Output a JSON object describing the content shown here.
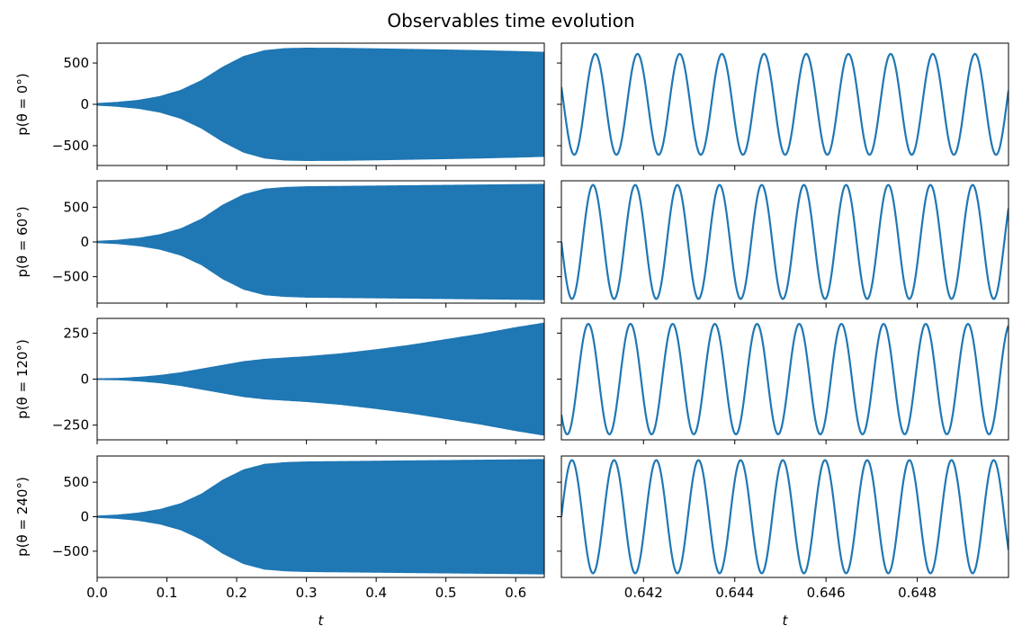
{
  "figure": {
    "title": "Observables time evolution"
  },
  "chart_data": [
    {
      "type": "area",
      "row": 0,
      "col": 0,
      "ylabel": "p(θ = 0°)",
      "xlabel": "",
      "xlim": [
        0.0,
        0.641
      ],
      "ylim": [
        -740,
        740
      ],
      "yticks": [
        -500,
        0,
        500
      ],
      "ytick_labels": [
        "−500",
        "0",
        "500"
      ],
      "xticks": [
        0.0,
        0.1,
        0.2,
        0.3,
        0.4,
        0.5,
        0.6
      ],
      "xtick_labels": [],
      "envelope": {
        "t": [
          0.0,
          0.03,
          0.06,
          0.09,
          0.12,
          0.15,
          0.18,
          0.21,
          0.24,
          0.27,
          0.3,
          0.35,
          0.4,
          0.45,
          0.5,
          0.55,
          0.6,
          0.641
        ],
        "amp": [
          10,
          25,
          50,
          95,
          170,
          290,
          450,
          580,
          650,
          675,
          680,
          678,
          672,
          665,
          658,
          650,
          640,
          630
        ]
      }
    },
    {
      "type": "line",
      "row": 0,
      "col": 1,
      "ylabel": "",
      "xlabel": "",
      "xlim": [
        0.6402,
        0.65
      ],
      "ylim": [
        -740,
        740
      ],
      "yticks": [
        -500,
        0,
        500
      ],
      "xticks": [
        0.642,
        0.644,
        0.646,
        0.648
      ],
      "xtick_labels": [],
      "wave": {
        "amplitude": 610,
        "cycles": 10.6,
        "phase_deg": 160
      }
    },
    {
      "type": "area",
      "row": 1,
      "col": 0,
      "ylabel": "p(θ = 60°)",
      "xlabel": "",
      "xlim": [
        0.0,
        0.641
      ],
      "ylim": [
        -880,
        880
      ],
      "yticks": [
        -500,
        0,
        500
      ],
      "ytick_labels": [
        "−500",
        "0",
        "500"
      ],
      "xticks": [
        0.0,
        0.1,
        0.2,
        0.3,
        0.4,
        0.5,
        0.6
      ],
      "xtick_labels": [],
      "envelope": {
        "t": [
          0.0,
          0.03,
          0.06,
          0.09,
          0.12,
          0.15,
          0.18,
          0.21,
          0.24,
          0.27,
          0.3,
          0.35,
          0.4,
          0.45,
          0.5,
          0.55,
          0.6,
          0.641
        ],
        "amp": [
          10,
          25,
          55,
          105,
          190,
          330,
          530,
          680,
          760,
          785,
          795,
          800,
          805,
          810,
          815,
          820,
          825,
          830
        ]
      }
    },
    {
      "type": "line",
      "row": 1,
      "col": 1,
      "ylabel": "",
      "xlabel": "",
      "xlim": [
        0.6402,
        0.65
      ],
      "ylim": [
        -880,
        880
      ],
      "yticks": [
        -500,
        0,
        500
      ],
      "xticks": [
        0.642,
        0.644,
        0.646,
        0.648
      ],
      "xtick_labels": [],
      "wave": {
        "amplitude": 820,
        "cycles": 10.6,
        "phase_deg": 180
      }
    },
    {
      "type": "area",
      "row": 2,
      "col": 0,
      "ylabel": "p(θ = 120°)",
      "xlabel": "",
      "xlim": [
        0.0,
        0.641
      ],
      "ylim": [
        -330,
        330
      ],
      "yticks": [
        -250,
        0,
        250
      ],
      "ytick_labels": [
        "−250",
        "0",
        "250"
      ],
      "xticks": [
        0.0,
        0.1,
        0.2,
        0.3,
        0.4,
        0.5,
        0.6
      ],
      "xtick_labels": [],
      "envelope": {
        "t": [
          0.0,
          0.03,
          0.06,
          0.09,
          0.12,
          0.15,
          0.18,
          0.21,
          0.24,
          0.27,
          0.3,
          0.35,
          0.4,
          0.45,
          0.5,
          0.55,
          0.6,
          0.641
        ],
        "amp": [
          2,
          4,
          10,
          20,
          35,
          55,
          75,
          95,
          108,
          115,
          122,
          138,
          160,
          185,
          215,
          245,
          280,
          305
        ]
      }
    },
    {
      "type": "line",
      "row": 2,
      "col": 1,
      "ylabel": "",
      "xlabel": "",
      "xlim": [
        0.6402,
        0.65
      ],
      "ylim": [
        -330,
        330
      ],
      "yticks": [
        -250,
        0,
        250
      ],
      "xticks": [
        0.642,
        0.644,
        0.646,
        0.648
      ],
      "xtick_labels": [],
      "wave": {
        "amplitude": 300,
        "cycles": 10.6,
        "phase_deg": 220
      }
    },
    {
      "type": "area",
      "row": 3,
      "col": 0,
      "ylabel": "p(θ = 240°)",
      "xlabel": "t",
      "xlim": [
        0.0,
        0.641
      ],
      "ylim": [
        -880,
        880
      ],
      "yticks": [
        -500,
        0,
        500
      ],
      "ytick_labels": [
        "−500",
        "0",
        "500"
      ],
      "xticks": [
        0.0,
        0.1,
        0.2,
        0.3,
        0.4,
        0.5,
        0.6
      ],
      "xtick_labels": [
        "0.0",
        "0.1",
        "0.2",
        "0.3",
        "0.4",
        "0.5",
        "0.6"
      ],
      "envelope": {
        "t": [
          0.0,
          0.03,
          0.06,
          0.09,
          0.12,
          0.15,
          0.18,
          0.21,
          0.24,
          0.27,
          0.3,
          0.35,
          0.4,
          0.45,
          0.5,
          0.55,
          0.6,
          0.641
        ],
        "amp": [
          10,
          25,
          55,
          105,
          190,
          330,
          530,
          680,
          760,
          785,
          795,
          800,
          805,
          810,
          815,
          820,
          825,
          830
        ]
      }
    },
    {
      "type": "line",
      "row": 3,
      "col": 1,
      "ylabel": "",
      "xlabel": "t",
      "xlim": [
        0.6402,
        0.65
      ],
      "ylim": [
        -880,
        880
      ],
      "yticks": [
        -500,
        0,
        500
      ],
      "xticks": [
        0.642,
        0.644,
        0.646,
        0.648
      ],
      "xtick_labels": [
        "0.642",
        "0.644",
        "0.646",
        "0.648"
      ],
      "wave": {
        "amplitude": 820,
        "cycles": 10.6,
        "phase_deg": 0
      }
    }
  ],
  "style": {
    "series_color": "#1f77b4",
    "axis_color": "#000000"
  }
}
